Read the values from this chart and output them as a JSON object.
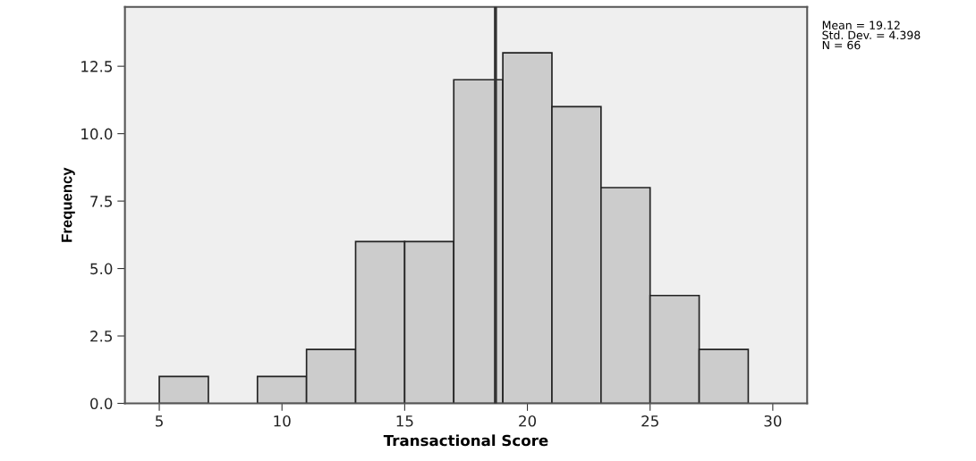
{
  "chart_data": {
    "type": "histogram",
    "xlabel": "Transactional Score",
    "ylabel": "Frequency",
    "bins": [
      5,
      7,
      9,
      11,
      13,
      15,
      17,
      19,
      21,
      23,
      25,
      27,
      29
    ],
    "values": [
      1,
      0,
      1,
      2,
      6,
      6,
      12,
      13,
      11,
      8,
      4,
      2
    ],
    "color": "#cccccc",
    "xlim": [
      3.6,
      31.4
    ],
    "xticks": [
      5,
      10,
      15,
      20,
      25,
      30
    ],
    "ylim": [
      0,
      14.7
    ],
    "yticks": [
      {
        "value": 0,
        "label": "0.0"
      },
      {
        "value": 2.5,
        "label": "2.5"
      },
      {
        "value": 5,
        "label": "5.0"
      },
      {
        "value": 7.5,
        "label": "7.5"
      },
      {
        "value": 10,
        "label": "10.0"
      },
      {
        "value": 12.5,
        "label": "12.5"
      }
    ],
    "ref_lines": [
      {
        "axis": "x",
        "value": 18.7,
        "color": "#333333"
      }
    ],
    "annotations": [
      "Mean = 19.12\nStd. Dev. = 4.398\nN = 66"
    ],
    "grid": false,
    "legend": false
  }
}
